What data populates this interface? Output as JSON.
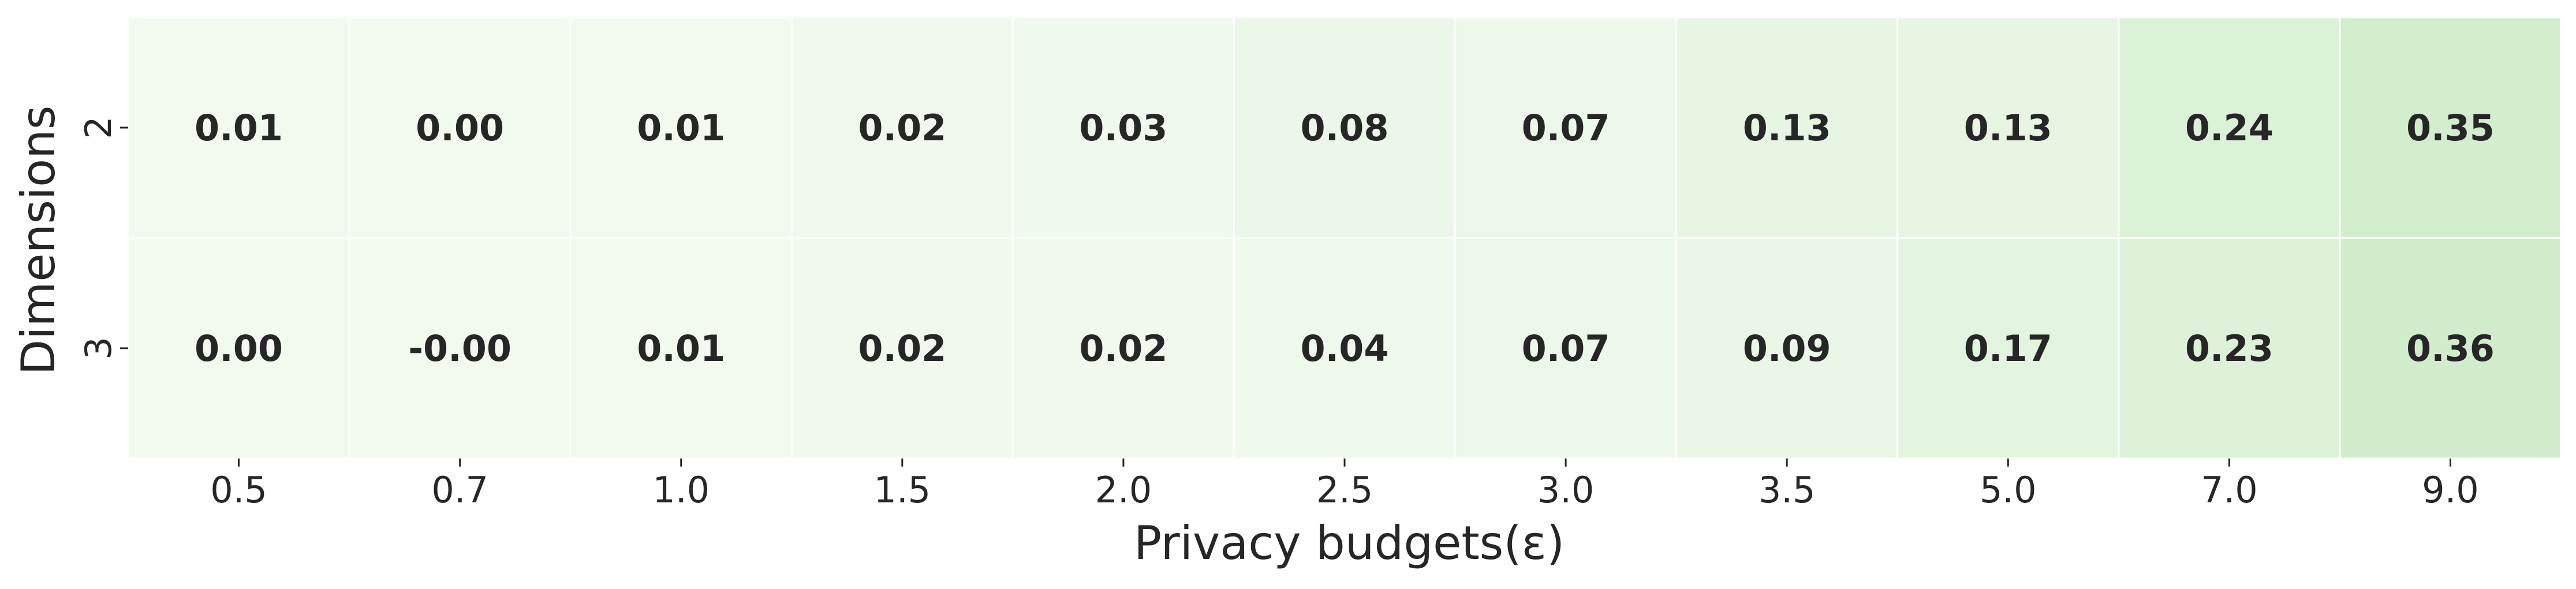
{
  "chart_data": {
    "type": "heatmap",
    "title": "",
    "xlabel": "Privacy budgets(ε)",
    "ylabel": "Dimensions",
    "x_categories": [
      "0.5",
      "0.7",
      "1.0",
      "1.5",
      "2.0",
      "2.5",
      "3.0",
      "3.5",
      "5.0",
      "7.0",
      "9.0"
    ],
    "y_categories": [
      "2",
      "3"
    ],
    "values": [
      [
        0.01,
        0.0,
        0.01,
        0.02,
        0.03,
        0.08,
        0.07,
        0.13,
        0.13,
        0.24,
        0.35
      ],
      [
        0.0,
        -0.0,
        0.01,
        0.02,
        0.02,
        0.04,
        0.07,
        0.09,
        0.17,
        0.23,
        0.36
      ]
    ],
    "labels": [
      [
        "0.01",
        "0.00",
        "0.01",
        "0.02",
        "0.03",
        "0.08",
        "0.07",
        "0.13",
        "0.13",
        "0.24",
        "0.35"
      ],
      [
        "0.00",
        "-0.00",
        "0.01",
        "0.02",
        "0.02",
        "0.04",
        "0.07",
        "0.09",
        "0.17",
        "0.23",
        "0.36"
      ]
    ],
    "colormap": "Greens",
    "color_range": [
      -0.05,
      1.0
    ],
    "colors": {
      "low": "#f7fcf5",
      "mid": "#c7e9c0",
      "high": "#74c476",
      "text": "#262626",
      "gap": "#ffffff"
    },
    "grid": false,
    "legend": "none"
  }
}
